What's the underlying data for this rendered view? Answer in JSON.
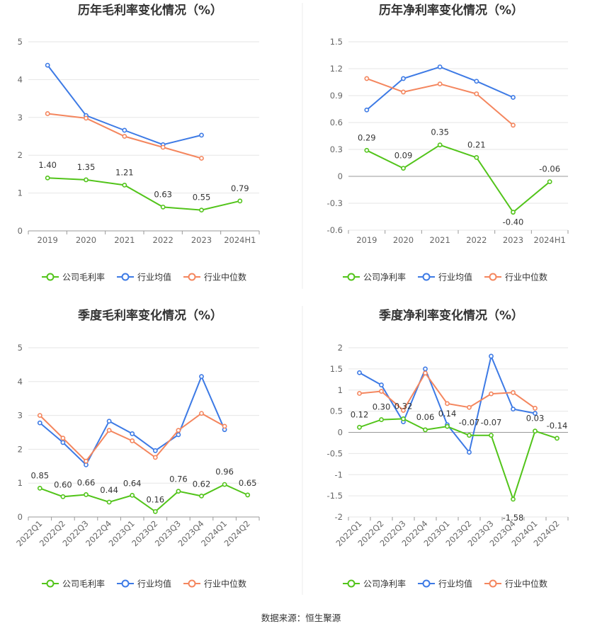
{
  "source": "数据来源：恒生聚源",
  "colors": {
    "company": "#52c41a",
    "industry_avg": "#3d7ae5",
    "industry_median": "#f4865e"
  },
  "chart_data": [
    {
      "type": "line",
      "title": "历年毛利率变化情况（%）",
      "categories": [
        "2019",
        "2020",
        "2021",
        "2022",
        "2023",
        "2024H1"
      ],
      "y_ticks": [
        0,
        1,
        2,
        3,
        4,
        5
      ],
      "ylim": [
        0,
        5
      ],
      "grid": true,
      "legend": "bottom",
      "series": [
        {
          "name": "公司毛利率",
          "color": "#52c41a",
          "labels": true,
          "values": [
            1.4,
            1.35,
            1.21,
            0.63,
            0.55,
            0.79
          ],
          "value_labels": [
            "1.40",
            "1.35",
            "1.21",
            "0.63",
            "0.55",
            "0.79"
          ]
        },
        {
          "name": "行业均值",
          "color": "#3d7ae5",
          "labels": false,
          "values": [
            4.38,
            3.05,
            2.66,
            2.28,
            2.53,
            null
          ]
        },
        {
          "name": "行业中位数",
          "color": "#f4865e",
          "labels": false,
          "values": [
            3.1,
            2.98,
            2.5,
            2.21,
            1.92,
            null
          ]
        }
      ]
    },
    {
      "type": "line",
      "title": "历年净利率变化情况（%）",
      "categories": [
        "2019",
        "2020",
        "2021",
        "2022",
        "2023",
        "2024H1"
      ],
      "y_ticks": [
        -0.6,
        -0.3,
        0,
        0.3,
        0.6,
        0.9,
        1.2,
        1.5
      ],
      "y_tick_labels": [
        "-0.6",
        "-0.3",
        "0",
        "0.3",
        "0.6",
        "0.9",
        "1.2",
        "1.5"
      ],
      "ylim": [
        -0.6,
        1.5
      ],
      "grid": true,
      "legend": "bottom",
      "series": [
        {
          "name": "公司净利率",
          "color": "#52c41a",
          "labels": true,
          "values": [
            0.29,
            0.09,
            0.35,
            0.21,
            -0.4,
            -0.06
          ],
          "value_labels": [
            "0.29",
            "0.09",
            "0.35",
            "0.21",
            "-0.40",
            "-0.06"
          ]
        },
        {
          "name": "行业均值",
          "color": "#3d7ae5",
          "labels": false,
          "values": [
            0.74,
            1.09,
            1.22,
            1.06,
            0.88,
            null
          ]
        },
        {
          "name": "行业中位数",
          "color": "#f4865e",
          "labels": false,
          "values": [
            1.09,
            0.94,
            1.03,
            0.92,
            0.57,
            null
          ]
        }
      ]
    },
    {
      "type": "line",
      "title": "季度毛利率变化情况（%）",
      "categories": [
        "2022Q1",
        "2022Q2",
        "2022Q3",
        "2022Q4",
        "2023Q1",
        "2023Q2",
        "2023Q3",
        "2023Q4",
        "2024Q1",
        "2024Q2"
      ],
      "y_ticks": [
        0,
        1,
        2,
        3,
        4,
        5
      ],
      "ylim": [
        0,
        5
      ],
      "grid": true,
      "legend": "bottom",
      "series": [
        {
          "name": "公司毛利率",
          "color": "#52c41a",
          "labels": true,
          "values": [
            0.85,
            0.6,
            0.66,
            0.44,
            0.64,
            0.16,
            0.76,
            0.62,
            0.96,
            0.65
          ],
          "value_labels": [
            "0.85",
            "0.60",
            "0.66",
            "0.44",
            "0.64",
            "0.16",
            "0.76",
            "0.62",
            "0.96",
            "0.65"
          ]
        },
        {
          "name": "行业均值",
          "color": "#3d7ae5",
          "labels": false,
          "values": [
            2.78,
            2.2,
            1.54,
            2.83,
            2.46,
            1.96,
            2.43,
            4.15,
            2.58,
            null
          ]
        },
        {
          "name": "行业中位数",
          "color": "#f4865e",
          "labels": false,
          "values": [
            3.0,
            2.33,
            1.65,
            2.56,
            2.25,
            1.76,
            2.56,
            3.06,
            2.68,
            null
          ]
        }
      ]
    },
    {
      "type": "line",
      "title": "季度净利率变化情况（%）",
      "categories": [
        "2022Q1",
        "2022Q2",
        "2022Q3",
        "2022Q4",
        "2023Q1",
        "2023Q2",
        "2023Q3",
        "2023Q4",
        "2024Q1",
        "2024Q2"
      ],
      "y_ticks": [
        -2,
        -1.5,
        -1,
        -0.5,
        0,
        0.5,
        1,
        1.5,
        2
      ],
      "y_tick_labels": [
        "-2",
        "-1.5",
        "-1",
        "-0.5",
        "0",
        "0.5",
        "1",
        "1.5",
        "2"
      ],
      "ylim": [
        -2,
        2
      ],
      "grid": true,
      "legend": "bottom",
      "series": [
        {
          "name": "公司净利率",
          "color": "#52c41a",
          "labels": true,
          "values": [
            0.12,
            0.3,
            0.32,
            0.06,
            0.14,
            -0.07,
            -0.07,
            -1.58,
            0.03,
            -0.14
          ],
          "value_labels": [
            "0.12",
            "0.30",
            "0.32",
            "0.06",
            "0.14",
            "-0.07",
            "-0.07",
            "-1.58",
            "0.03",
            "-0.14"
          ]
        },
        {
          "name": "行业均值",
          "color": "#3d7ae5",
          "labels": false,
          "values": [
            1.41,
            1.12,
            0.25,
            1.5,
            0.18,
            -0.47,
            1.8,
            0.55,
            0.45,
            null
          ]
        },
        {
          "name": "行业中位数",
          "color": "#f4865e",
          "labels": false,
          "values": [
            0.92,
            0.97,
            0.52,
            1.4,
            0.68,
            0.59,
            0.91,
            0.94,
            0.57,
            null
          ]
        }
      ]
    }
  ]
}
